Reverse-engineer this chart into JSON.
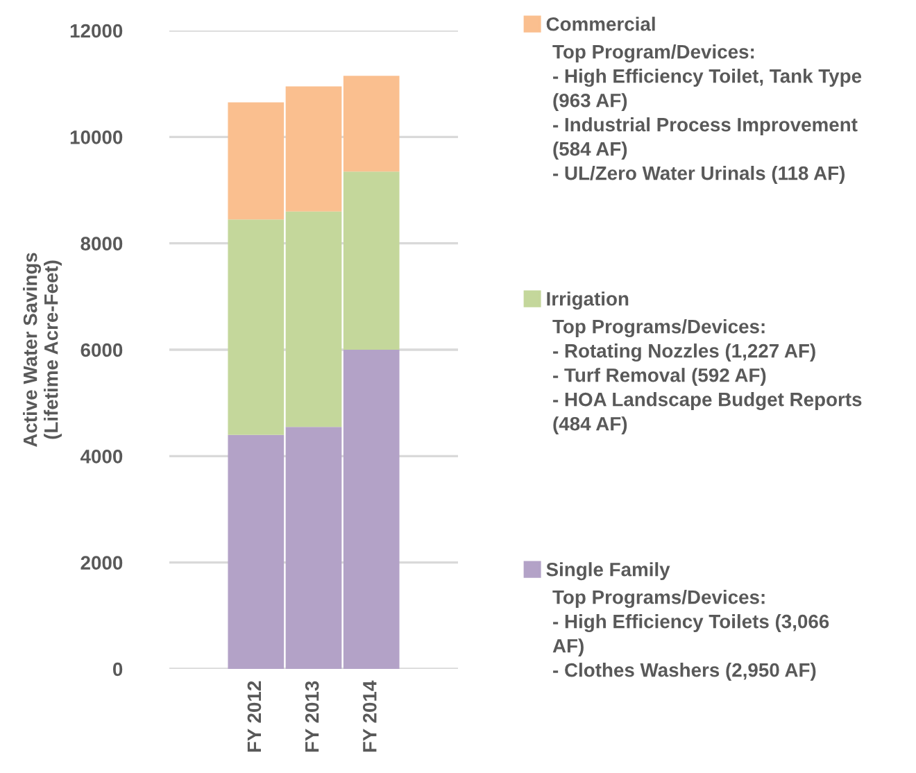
{
  "chart_data": {
    "type": "bar",
    "stacked": true,
    "ylabel": "Active Water Savings\n(Lifetime Acre-Feet)",
    "categories": [
      "FY 2012",
      "FY 2013",
      "FY 2014"
    ],
    "series": [
      {
        "name": "Single Family",
        "color": "#b3a2c7",
        "values": [
          4400,
          4550,
          6000
        ]
      },
      {
        "name": "Irrigation",
        "color": "#c4d79b",
        "values": [
          4050,
          4050,
          3350
        ]
      },
      {
        "name": "Commercial",
        "color": "#fabf8f",
        "values": [
          2200,
          2350,
          1800
        ]
      }
    ],
    "ylim": [
      0,
      12000
    ],
    "yticks": [
      0,
      2000,
      4000,
      6000,
      8000,
      10000,
      12000
    ],
    "grid": "y",
    "legend": "right",
    "annotations": [
      "Top Programs/Devices:\n- High Efficiency Toilets (3,066\nAF)\n- Clothes Washers (2,950 AF)",
      "Top Programs/Devices:\n- Rotating Nozzles (1,227 AF)\n- Turf Removal (592 AF)\n- HOA Landscape Budget Reports\n(484 AF)",
      "Top Program/Devices:\n- High Efficiency Toilet, Tank Type\n(963 AF)\n- Industrial Process Improvement\n(584 AF)\n- UL/Zero Water Urinals (118 AF)"
    ]
  }
}
